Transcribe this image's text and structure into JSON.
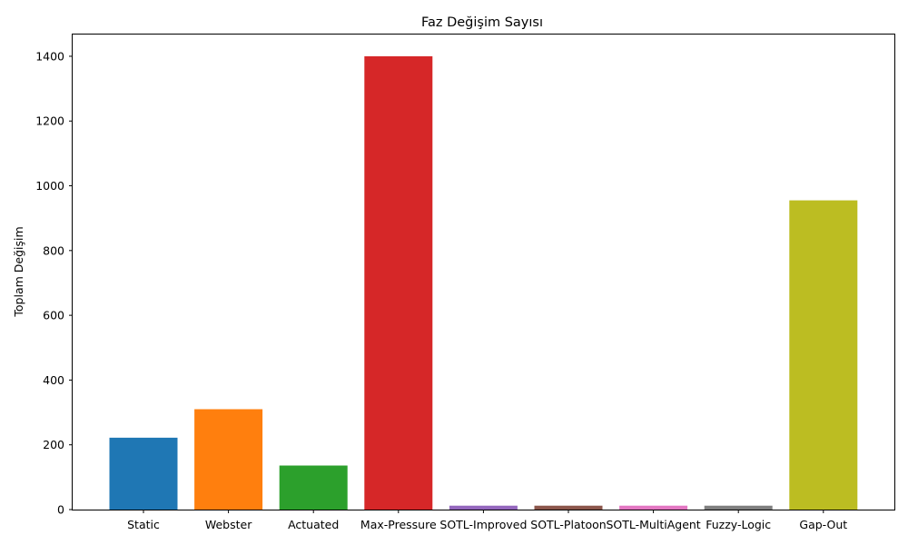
{
  "chart_data": {
    "type": "bar",
    "title": "Faz Değişim Sayısı",
    "xlabel": "",
    "ylabel": "Toplam Değişim",
    "categories": [
      "Static",
      "Webster",
      "Actuated",
      "Max-Pressure",
      "SOTL-Improved",
      "SOTL-Platoon",
      "SOTL-MultiAgent",
      "Fuzzy-Logic",
      "Gap-Out"
    ],
    "values": [
      222,
      310,
      136,
      1400,
      12,
      12,
      12,
      12,
      955
    ],
    "colors": [
      "#1f77b4",
      "#ff7f0e",
      "#2ca02c",
      "#d62728",
      "#9467bd",
      "#8c564b",
      "#e377c2",
      "#7f7f7f",
      "#bcbd22"
    ],
    "yticks": [
      0,
      200,
      400,
      600,
      800,
      1000,
      1200,
      1400
    ],
    "ylim": [
      0,
      1470
    ],
    "grid": false,
    "legend": false
  }
}
